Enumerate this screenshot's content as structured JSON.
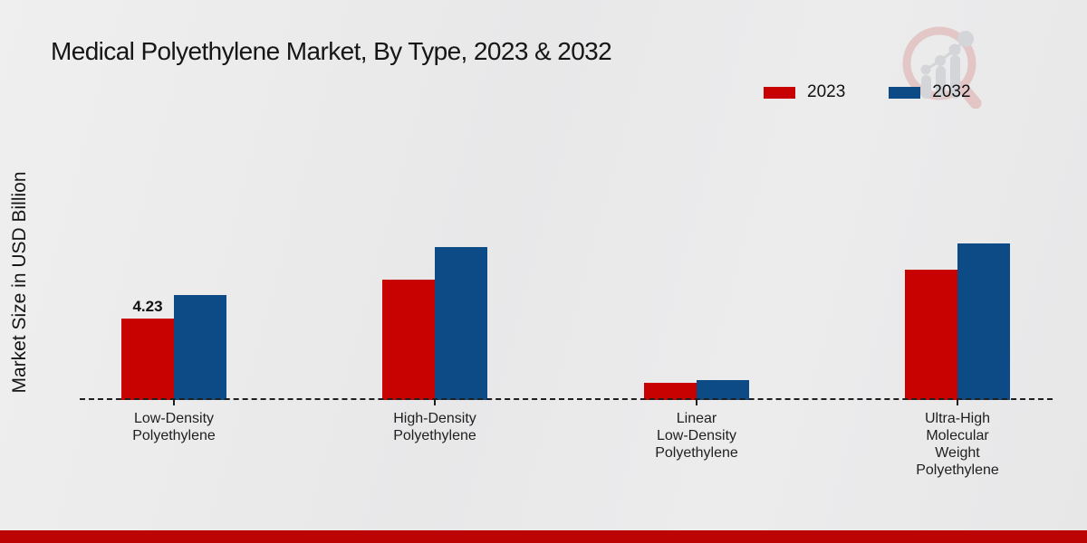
{
  "title": "Medical Polyethylene Market, By Type, 2023 & 2032",
  "y_axis_label": "Market Size in USD Billion",
  "colors": {
    "series_2023": "#c80101",
    "series_2032": "#0d4b87",
    "footer_band": "#bd0404",
    "baseline": "#1f1f1f",
    "background": "#eaeaeb"
  },
  "watermark_icon": "magnifier-bar-chart-logo",
  "legend": {
    "items": [
      {
        "label": "2023",
        "color": "#c80101"
      },
      {
        "label": "2032",
        "color": "#0d4b87"
      }
    ]
  },
  "chart_data": {
    "type": "bar",
    "title": "Medical Polyethylene Market, By Type, 2023 & 2032",
    "xlabel": "",
    "ylabel": "Market Size in USD Billion",
    "ylim": [
      0,
      9.5
    ],
    "grid": false,
    "legend_position": "top-right",
    "baseline_style": "dashed",
    "categories": [
      "Low-Density Polyethylene",
      "High-Density Polyethylene",
      "Linear Low-Density Polyethylene",
      "Ultra-High Molecular Weight Polyethylene"
    ],
    "categories_lines": [
      [
        "Low-Density",
        "Polyethylene"
      ],
      [
        "High-Density",
        "Polyethylene"
      ],
      [
        "Linear",
        "Low-Density",
        "Polyethylene"
      ],
      [
        "Ultra-High",
        "Molecular",
        "Weight",
        "Polyethylene"
      ]
    ],
    "series": [
      {
        "name": "2023",
        "color": "#c80101",
        "values": [
          4.23,
          6.25,
          0.89,
          6.77
        ]
      },
      {
        "name": "2032",
        "color": "#0d4b87",
        "values": [
          5.45,
          7.94,
          1.03,
          8.13
        ]
      }
    ],
    "annotations": [
      {
        "series": "2023",
        "category_index": 0,
        "text": "4.23"
      }
    ]
  }
}
